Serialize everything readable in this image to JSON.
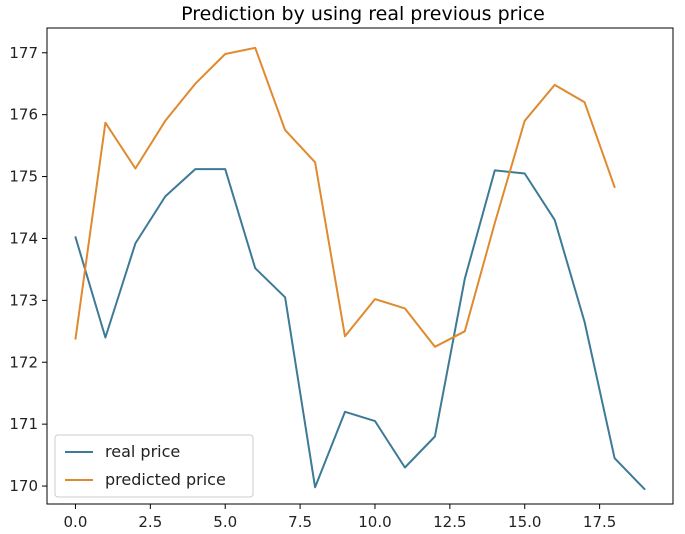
{
  "chart_data": {
    "type": "line",
    "title": "Prediction by using real previous price",
    "xlabel": "",
    "ylabel": "",
    "xlim": [
      -0.95,
      19.95
    ],
    "ylim": [
      169.71,
      177.4
    ],
    "xticks": [
      0.0,
      2.5,
      5.0,
      7.5,
      10.0,
      12.5,
      15.0,
      17.5
    ],
    "xtick_labels": [
      "0.0",
      "2.5",
      "5.0",
      "7.5",
      "10.0",
      "12.5",
      "15.0",
      "17.5"
    ],
    "yticks": [
      170,
      171,
      172,
      173,
      174,
      175,
      176,
      177
    ],
    "ytick_labels": [
      "170",
      "171",
      "172",
      "173",
      "174",
      "175",
      "176",
      "177"
    ],
    "grid": false,
    "legend_position": "lower-left",
    "series": [
      {
        "name": "real price",
        "color": "#3d7a96",
        "x": [
          0,
          1,
          2,
          3,
          4,
          5,
          6,
          7,
          8,
          9,
          10,
          11,
          12,
          13,
          14,
          15,
          16,
          17,
          18,
          19
        ],
        "values": [
          174.02,
          172.4,
          173.92,
          174.68,
          175.12,
          175.12,
          173.52,
          173.05,
          169.98,
          171.2,
          171.05,
          170.3,
          170.8,
          173.35,
          175.1,
          175.05,
          174.3,
          172.65,
          170.45,
          169.95
        ]
      },
      {
        "name": "predicted price",
        "color": "#e08a2f",
        "x": [
          0,
          1,
          2,
          3,
          4,
          5,
          6,
          7,
          8,
          9,
          10,
          11,
          12,
          13,
          14,
          15,
          16,
          17,
          18
        ],
        "values": [
          172.38,
          175.87,
          175.13,
          175.9,
          176.5,
          176.98,
          177.08,
          175.75,
          175.23,
          172.42,
          173.02,
          172.87,
          172.25,
          172.5,
          174.25,
          175.9,
          176.48,
          176.2,
          174.83
        ]
      }
    ]
  }
}
